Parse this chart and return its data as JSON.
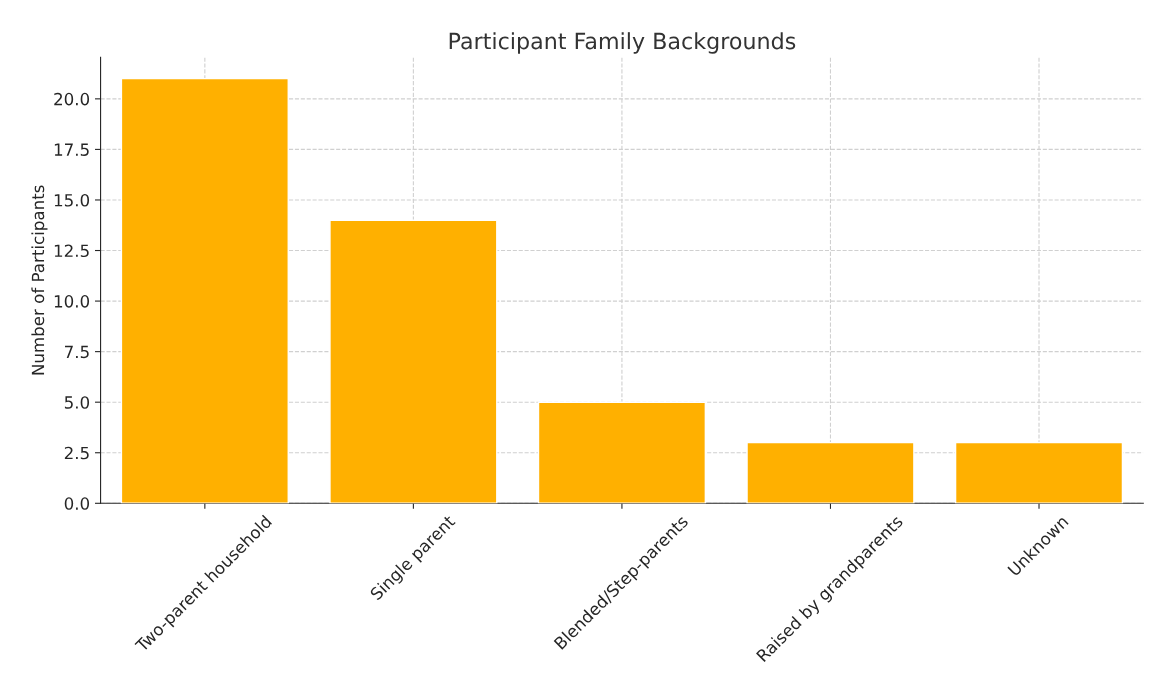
{
  "chart_data": {
    "type": "bar",
    "title": "Participant Family Backgrounds",
    "ylabel": "Number of Participants",
    "categories": [
      "Two-parent household",
      "Single parent",
      "Blended/Step-parents",
      "Raised by grandparents",
      "Unknown"
    ],
    "values": [
      21,
      14,
      5,
      3,
      3
    ],
    "color": "#ffb000",
    "ylim": [
      0,
      22.05
    ],
    "yticks": [
      {
        "value": 0,
        "label": "0.0"
      },
      {
        "value": 2.5,
        "label": "2.5"
      },
      {
        "value": 5,
        "label": "5.0"
      },
      {
        "value": 7.5,
        "label": "7.5"
      },
      {
        "value": 10,
        "label": "10.0"
      },
      {
        "value": 12.5,
        "label": "12.5"
      },
      {
        "value": 15,
        "label": "15.0"
      },
      {
        "value": 17.5,
        "label": "17.5"
      },
      {
        "value": 20,
        "label": "20.0"
      }
    ],
    "grid": true
  }
}
